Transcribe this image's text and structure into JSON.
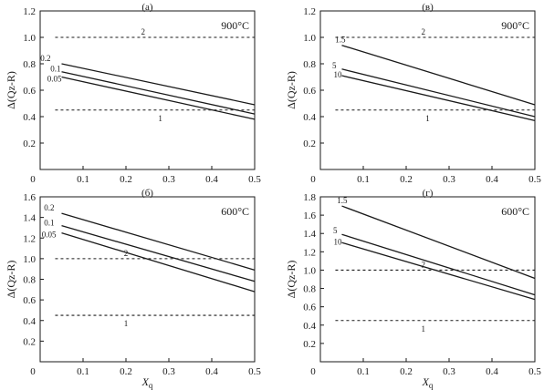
{
  "chart_data": [
    {
      "type": "line",
      "panel": "(а)",
      "temperature": "900°C",
      "xlabel": "",
      "ylabel": "Δ(Qz-R)",
      "xlim": [
        0,
        0.5
      ],
      "ylim": [
        0,
        1.2
      ],
      "xticks": [
        0,
        0.1,
        0.2,
        0.3,
        0.4,
        0.5
      ],
      "yticks": [
        0,
        0.2,
        0.4,
        0.6,
        0.8,
        1.0,
        1.2
      ],
      "xtick_labels": [
        "0",
        "0.1",
        "0.2",
        "0.3",
        "0.4",
        "0.5"
      ],
      "ytick_labels": [
        "0",
        "0.2",
        "0.4",
        "0.6",
        "0.8",
        "1.0",
        "1.2"
      ],
      "series": [
        {
          "name": "0.2",
          "style": "solid",
          "x": [
            0.05,
            0.5
          ],
          "y": [
            0.8,
            0.49
          ]
        },
        {
          "name": "0.1",
          "style": "solid",
          "x": [
            0.05,
            0.5
          ],
          "y": [
            0.74,
            0.42
          ]
        },
        {
          "name": "0.05",
          "style": "solid",
          "x": [
            0.05,
            0.5
          ],
          "y": [
            0.7,
            0.38
          ]
        }
      ],
      "reference_lines": [
        {
          "name": "2",
          "style": "dashed",
          "y": 1.0
        },
        {
          "name": "1",
          "style": "dashed",
          "y": 0.45
        }
      ]
    },
    {
      "type": "line",
      "panel": "(в)",
      "temperature": "900°C",
      "xlabel": "",
      "ylabel": "Δ(Qz-R)",
      "xlim": [
        0,
        0.5
      ],
      "ylim": [
        0,
        1.2
      ],
      "xticks": [
        0,
        0.1,
        0.2,
        0.3,
        0.4,
        0.5
      ],
      "yticks": [
        0,
        0.2,
        0.4,
        0.6,
        0.8,
        1.0,
        1.2
      ],
      "xtick_labels": [
        "0",
        "0.1",
        "0.2",
        "0.3",
        "0.4",
        "0.5"
      ],
      "ytick_labels": [
        "0",
        "0.2",
        "0.4",
        "0.6",
        "0.8",
        "1.0",
        "1.2"
      ],
      "series": [
        {
          "name": "1.5",
          "style": "solid",
          "x": [
            0.05,
            0.5
          ],
          "y": [
            0.94,
            0.49
          ]
        },
        {
          "name": "5",
          "style": "solid",
          "x": [
            0.05,
            0.5
          ],
          "y": [
            0.76,
            0.4
          ]
        },
        {
          "name": "10",
          "style": "solid",
          "x": [
            0.05,
            0.5
          ],
          "y": [
            0.71,
            0.37
          ]
        }
      ],
      "reference_lines": [
        {
          "name": "2",
          "style": "dashed",
          "y": 1.0
        },
        {
          "name": "1",
          "style": "dashed",
          "y": 0.45
        }
      ]
    },
    {
      "type": "line",
      "panel": "(б)",
      "temperature": "600°C",
      "xlabel": "Xq",
      "ylabel": "Δ(Qz-R)",
      "xlim": [
        0,
        0.5
      ],
      "ylim": [
        0,
        1.6
      ],
      "xticks": [
        0,
        0.1,
        0.2,
        0.3,
        0.4,
        0.5
      ],
      "yticks": [
        0,
        0.2,
        0.4,
        0.6,
        0.8,
        1.0,
        1.2,
        1.4,
        1.6
      ],
      "xtick_labels": [
        "0",
        "0.1",
        "0.2",
        "0.3",
        "0.4",
        "0.5"
      ],
      "ytick_labels": [
        "0",
        "0.2",
        "0.4",
        "0.6",
        "0.8",
        "1.0",
        "1.2",
        "1.4",
        "1.6"
      ],
      "series": [
        {
          "name": "0.2",
          "style": "solid",
          "x": [
            0.05,
            0.5
          ],
          "y": [
            1.44,
            0.89
          ]
        },
        {
          "name": "0.1",
          "style": "solid",
          "x": [
            0.05,
            0.5
          ],
          "y": [
            1.32,
            0.78
          ]
        },
        {
          "name": "0.05",
          "style": "solid",
          "x": [
            0.05,
            0.5
          ],
          "y": [
            1.25,
            0.68
          ]
        }
      ],
      "reference_lines": [
        {
          "name": "2",
          "style": "dashed",
          "y": 1.0
        },
        {
          "name": "1",
          "style": "dashed",
          "y": 0.45
        }
      ]
    },
    {
      "type": "line",
      "panel": "(г)",
      "temperature": "600°C",
      "xlabel": "Xq",
      "ylabel": "Δ(Qz-R)",
      "xlim": [
        0,
        0.5
      ],
      "ylim": [
        0,
        1.8
      ],
      "xticks": [
        0,
        0.1,
        0.2,
        0.3,
        0.4,
        0.5
      ],
      "yticks": [
        0,
        0.2,
        0.4,
        0.6,
        0.8,
        1.0,
        1.2,
        1.4,
        1.6,
        1.8
      ],
      "xtick_labels": [
        "0",
        "0.1",
        "0.2",
        "0.3",
        "0.4",
        "0.5"
      ],
      "ytick_labels": [
        "0",
        "0.2",
        "0.4",
        "0.6",
        "0.8",
        "1.0",
        "1.2",
        "1.4",
        "1.6",
        "1.8"
      ],
      "series": [
        {
          "name": "1.5",
          "style": "solid",
          "x": [
            0.05,
            0.5
          ],
          "y": [
            1.7,
            0.91
          ]
        },
        {
          "name": "5",
          "style": "solid",
          "x": [
            0.05,
            0.5
          ],
          "y": [
            1.39,
            0.73
          ]
        },
        {
          "name": "10",
          "style": "solid",
          "x": [
            0.05,
            0.5
          ],
          "y": [
            1.3,
            0.68
          ]
        }
      ],
      "reference_lines": [
        {
          "name": "2",
          "style": "dashed",
          "y": 1.0
        },
        {
          "name": "1",
          "style": "dashed",
          "y": 0.45
        }
      ]
    }
  ],
  "colors": {
    "line": "#1a1a1a",
    "axis": "#1a1a1a",
    "background": "#ffffff"
  }
}
